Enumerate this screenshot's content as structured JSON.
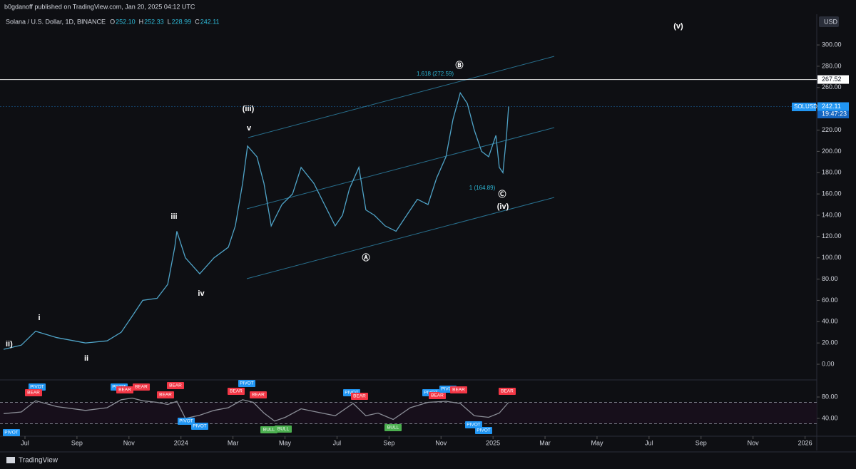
{
  "header": "b0gdanoff published on TradingView.com, Jan 20, 2025 04:12 UTC",
  "footer": "TradingView",
  "chart_data": {
    "type": "line",
    "symbol": "Solana / U.S. Dollar, 1D, BINANCE",
    "ohlc": [
      {
        "key": "O",
        "text": "252.10"
      },
      {
        "key": "H",
        "text": "252.33"
      },
      {
        "key": "L",
        "text": "228.99"
      },
      {
        "key": "C",
        "text": "242.11"
      }
    ],
    "currency": "USD",
    "x": [
      5.18,
      5.86,
      6.41,
      7.23,
      8.33,
      9.16,
      9.7,
      10.12,
      10.53,
      11.08,
      11.49,
      11.76,
      11.84,
      12.17,
      12.72,
      13.27,
      13.82,
      14.09,
      14.37,
      14.56,
      14.92,
      15.19,
      15.47,
      15.88,
      16.29,
      16.62,
      17.11,
      17.52,
      17.93,
      18.21,
      18.48,
      18.84,
      19.11,
      19.44,
      19.85,
      20.27,
      20.68,
      21.09,
      21.5,
      21.83,
      22.19,
      22.46,
      22.74,
      23.01,
      23.28,
      23.56,
      23.83,
      24.11,
      24.24,
      24.38,
      24.52,
      24.6
    ],
    "series": [
      {
        "name": "SOLUSD",
        "color": "#4fa3c7",
        "values": [
          14,
          18,
          31,
          25,
          20,
          22,
          30,
          45,
          60,
          62,
          75,
          110,
          125,
          100,
          85,
          100,
          110,
          130,
          170,
          205,
          195,
          170,
          130,
          150,
          160,
          185,
          170,
          150,
          130,
          140,
          165,
          185,
          145,
          140,
          130,
          125,
          140,
          155,
          150,
          175,
          195,
          230,
          255,
          245,
          220,
          200,
          195,
          215,
          185,
          180,
          215,
          242.11
        ]
      }
    ],
    "xlim": [
      5.04,
      36.45
    ],
    "xticks": [
      {
        "value": 6,
        "label": "Jul"
      },
      {
        "value": 8,
        "label": "Sep"
      },
      {
        "value": 10,
        "label": "Nov"
      },
      {
        "value": 12,
        "label": "2024"
      },
      {
        "value": 14,
        "label": "Mar"
      },
      {
        "value": 16,
        "label": "May"
      },
      {
        "value": 18,
        "label": "Jul"
      },
      {
        "value": 20,
        "label": "Sep"
      },
      {
        "value": 22,
        "label": "Nov"
      },
      {
        "value": 24,
        "label": "2025"
      },
      {
        "value": 26,
        "label": "Mar"
      },
      {
        "value": 28,
        "label": "May"
      },
      {
        "value": 30,
        "label": "Jul"
      },
      {
        "value": 32,
        "label": "Sep"
      },
      {
        "value": 34,
        "label": "Nov"
      },
      {
        "value": 36,
        "label": "2026"
      }
    ],
    "ylim": [
      -12.7,
      327.5
    ],
    "yticks": [
      {
        "value": 0,
        "label": "0.00"
      },
      {
        "value": 20,
        "label": "20.00"
      },
      {
        "value": 40,
        "label": "40.00"
      },
      {
        "value": 60,
        "label": "60.00"
      },
      {
        "value": 80,
        "label": "80.00"
      },
      {
        "value": 100,
        "label": "100.00"
      },
      {
        "value": 120,
        "label": "120.00"
      },
      {
        "value": 140,
        "label": "140.00"
      },
      {
        "value": 160,
        "label": "160.00"
      },
      {
        "value": 180,
        "label": "180.00"
      },
      {
        "value": 200,
        "label": "200.00"
      },
      {
        "value": 220,
        "label": "220.00"
      },
      {
        "value": 240,
        "label": "240.00"
      },
      {
        "value": 260,
        "label": "260.00"
      },
      {
        "value": 280,
        "label": "280.00"
      },
      {
        "value": 300,
        "label": "300.00"
      }
    ],
    "price_lines": [
      {
        "value": 267.52,
        "color": "#ffffff"
      },
      {
        "value": 242.11,
        "color": "#2196f3"
      }
    ],
    "countdown": "19:47:23",
    "annotations": [
      "(v)",
      "(iii)",
      "v",
      "iii",
      "iv",
      "i",
      "ii",
      "ii)",
      "Ⓑ",
      "Ⓐ",
      "Ⓒ",
      "(iv)",
      "1.618 (272.59)",
      "1 (164.89)"
    ],
    "indicator": {
      "type": "line",
      "color": "#8a8d96",
      "x": [
        5.18,
        5.86,
        6.41,
        7.23,
        8.33,
        9.16,
        9.7,
        10.12,
        10.53,
        11.08,
        11.49,
        11.84,
        12.17,
        12.72,
        13.27,
        13.82,
        14.37,
        14.78,
        15.19,
        15.6,
        16.01,
        16.62,
        17.11,
        17.93,
        18.62,
        19.11,
        19.58,
        20.16,
        20.82,
        21.5,
        22.19,
        22.74,
        23.28,
        23.83,
        24.24,
        24.6
      ],
      "values": [
        49,
        52,
        73,
        62,
        55,
        60,
        75,
        78,
        73,
        70,
        66,
        72,
        40,
        46,
        55,
        60,
        75,
        70,
        50,
        35,
        42,
        58,
        53,
        45,
        68,
        45,
        50,
        38,
        60,
        70,
        72,
        68,
        45,
        42,
        50,
        70
      ],
      "ylim": [
        6.7,
        108
      ],
      "yticks": [
        {
          "value": 80,
          "label": "80.00"
        },
        {
          "value": 40,
          "label": "40.00"
        }
      ],
      "levels": [
        70,
        30
      ],
      "labels": [
        {
          "text": "PIVOT",
          "color": "#2196f3"
        },
        {
          "text": "PIVOT",
          "color": "#2196f3"
        },
        {
          "text": "BEAR",
          "color": "#f23645"
        },
        {
          "text": "PIVOT",
          "color": "#2196f3"
        },
        {
          "text": "BEAR",
          "color": "#f23645"
        },
        {
          "text": "BEAR",
          "color": "#f23645"
        },
        {
          "text": "BEAR",
          "color": "#f23645"
        },
        {
          "text": "BEAR",
          "color": "#f23645"
        },
        {
          "text": "PIVOT",
          "color": "#2196f3"
        },
        {
          "text": "PIVOT",
          "color": "#2196f3"
        },
        {
          "text": "BEAR",
          "color": "#f23645"
        },
        {
          "text": "PIVOT",
          "color": "#2196f3"
        },
        {
          "text": "BEAR",
          "color": "#f23645"
        },
        {
          "text": "BULL",
          "color": "#4caf50"
        },
        {
          "text": "BULL",
          "color": "#4caf50"
        },
        {
          "text": "PIVOT",
          "color": "#2196f3"
        },
        {
          "text": "BEAR",
          "color": "#f23645"
        },
        {
          "text": "BULL",
          "color": "#4caf50"
        },
        {
          "text": "PIVOT",
          "color": "#2196f3"
        },
        {
          "text": "BEAR",
          "color": "#f23645"
        },
        {
          "text": "PIVOT",
          "color": "#2196f3"
        },
        {
          "text": "BEAR",
          "color": "#f23645"
        },
        {
          "text": "PIVOT",
          "color": "#2196f3"
        },
        {
          "text": "PIVOT",
          "color": "#2196f3"
        },
        {
          "text": "BEAR",
          "color": "#f23645"
        }
      ]
    }
  }
}
